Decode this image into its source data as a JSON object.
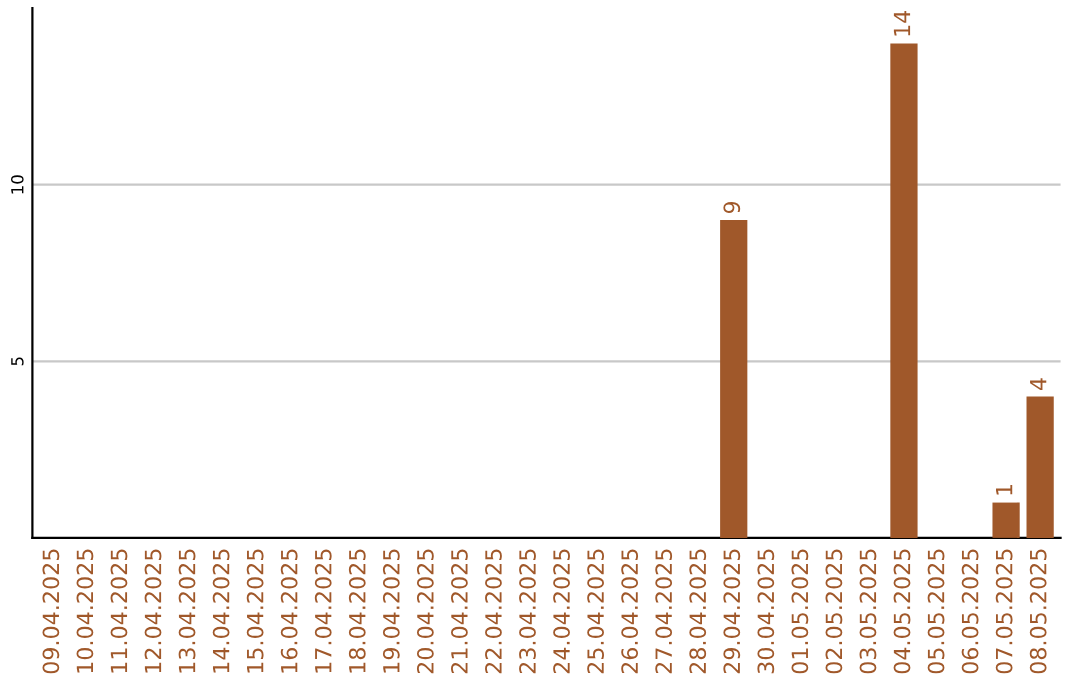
{
  "chart_data": {
    "type": "bar",
    "categories": [
      "09.04.2025",
      "10.04.2025",
      "11.04.2025",
      "12.04.2025",
      "13.04.2025",
      "14.04.2025",
      "15.04.2025",
      "16.04.2025",
      "17.04.2025",
      "18.04.2025",
      "19.04.2025",
      "20.04.2025",
      "21.04.2025",
      "22.04.2025",
      "23.04.2025",
      "24.04.2025",
      "25.04.2025",
      "26.04.2025",
      "27.04.2025",
      "28.04.2025",
      "29.04.2025",
      "30.04.2025",
      "01.05.2025",
      "02.05.2025",
      "03.05.2025",
      "04.05.2025",
      "05.05.2025",
      "06.05.2025",
      "07.05.2025",
      "08.05.2025"
    ],
    "values": [
      0,
      0,
      0,
      0,
      0,
      0,
      0,
      0,
      0,
      0,
      0,
      0,
      0,
      0,
      0,
      0,
      0,
      0,
      0,
      0,
      9,
      0,
      0,
      0,
      0,
      14,
      0,
      0,
      1,
      4
    ],
    "value_labels": [
      null,
      null,
      null,
      null,
      null,
      null,
      null,
      null,
      null,
      null,
      null,
      null,
      null,
      null,
      null,
      null,
      null,
      null,
      null,
      null,
      "9",
      null,
      null,
      null,
      null,
      "14",
      null,
      null,
      "1",
      "4"
    ],
    "color": "#a0582a",
    "ylim": [
      0,
      15
    ],
    "yticks": [
      5,
      10
    ],
    "grid": "y",
    "legend": false
  }
}
